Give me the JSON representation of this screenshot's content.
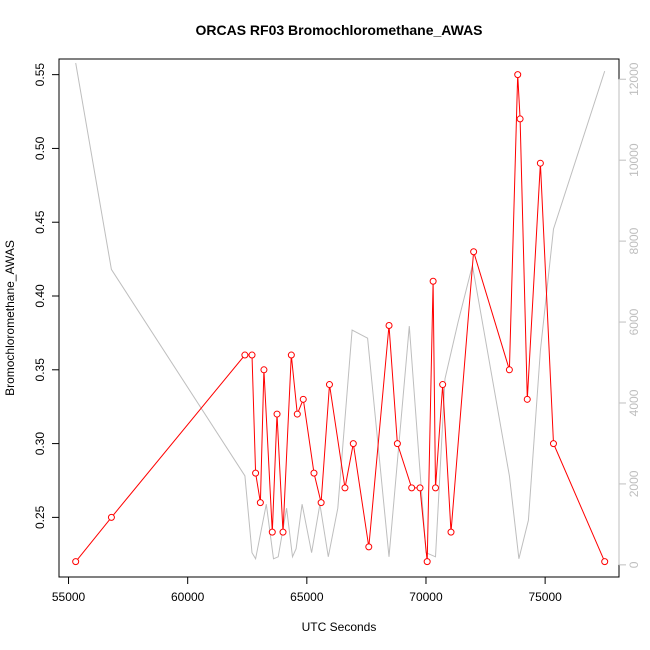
{
  "chart_data": {
    "type": "line",
    "title": "ORCAS RF03 Bromochloromethane_AWAS",
    "xlabel": "UTC Seconds",
    "ylabel": "Bromochloromethane_AWAS",
    "xlim": [
      54600,
      78100
    ],
    "ylim": [
      0.2096,
      0.5606
    ],
    "y2lim": [
      -300,
      12500
    ],
    "x_ticks": [
      55000,
      60000,
      65000,
      70000,
      75000
    ],
    "x_tick_labels": [
      "55000",
      "60000",
      "65000",
      "70000",
      "75000"
    ],
    "y_ticks": [
      0.25,
      0.3,
      0.35,
      0.4,
      0.45,
      0.5,
      0.55
    ],
    "y_tick_labels": [
      "0.25",
      "0.30",
      "0.35",
      "0.40",
      "0.45",
      "0.50",
      "0.55"
    ],
    "y2_ticks": [
      0,
      2000,
      4000,
      6000,
      8000,
      10000,
      12000
    ],
    "y2_tick_labels": [
      "0",
      "2000",
      "4000",
      "6000",
      "8000",
      "10000",
      "12000"
    ],
    "colors": {
      "primary": "#ff0000",
      "secondary": "#bebebe",
      "axis": "#000000",
      "axis2": "#bebebe"
    },
    "series": [
      {
        "axis": "left",
        "style": "line+points",
        "x": [
          55300,
          56800,
          62400,
          62700,
          62850,
          63050,
          63200,
          63550,
          63750,
          64000,
          64350,
          64600,
          64850,
          65300,
          65600,
          65950,
          66600,
          66950,
          67600,
          68450,
          68800,
          69400,
          69750,
          70050,
          70300,
          70400,
          70700,
          71050,
          72000,
          73500,
          73850,
          73950,
          74250,
          74800,
          75350,
          77500
        ],
        "y": [
          0.22,
          0.25,
          0.36,
          0.36,
          0.28,
          0.26,
          0.35,
          0.24,
          0.32,
          0.24,
          0.36,
          0.32,
          0.33,
          0.28,
          0.26,
          0.34,
          0.27,
          0.3,
          0.23,
          0.38,
          0.3,
          0.27,
          0.27,
          0.22,
          0.41,
          0.27,
          0.34,
          0.24,
          0.43,
          0.35,
          0.55,
          0.52,
          0.33,
          0.49,
          0.3,
          0.22
        ]
      },
      {
        "axis": "right",
        "style": "line",
        "x": [
          55300,
          56800,
          62400,
          62700,
          62850,
          63300,
          63600,
          63800,
          64150,
          64400,
          64550,
          64800,
          65200,
          65550,
          65900,
          66300,
          66900,
          67550,
          68450,
          69300,
          70000,
          70400,
          70800,
          71350,
          71950,
          73500,
          73900,
          74300,
          74800,
          75350,
          77500
        ],
        "y": [
          12400,
          7300,
          2200,
          300,
          150,
          1500,
          150,
          200,
          1400,
          200,
          400,
          1500,
          300,
          1500,
          200,
          1400,
          5800,
          5600,
          200,
          5900,
          300,
          200,
          4600,
          6000,
          7400,
          2200,
          150,
          1100,
          5300,
          8300,
          12200
        ]
      }
    ]
  }
}
